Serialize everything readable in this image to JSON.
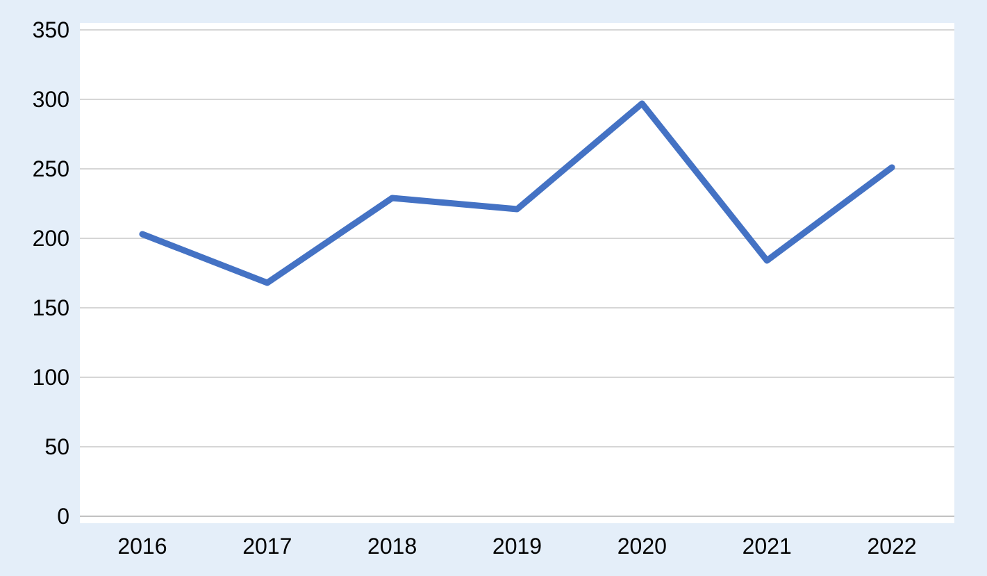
{
  "chart": {
    "background_color": "#e4eef9",
    "plot_background_color": "#ffffff",
    "gridline_color": "#d6d6d6",
    "axis_line_color": "#c2c2c2",
    "text_color": "#000000"
  },
  "chart_data": {
    "type": "line",
    "categories": [
      "2016",
      "2017",
      "2018",
      "2019",
      "2020",
      "2021",
      "2022"
    ],
    "values": [
      203,
      168,
      229,
      221,
      297,
      184,
      251
    ],
    "series": [
      {
        "name": "",
        "values": [
          203,
          168,
          229,
          221,
          297,
          184,
          251
        ],
        "color": "#4472c4",
        "line_width": 9
      }
    ],
    "title": "",
    "xlabel": "",
    "ylabel": "",
    "ylim": [
      0,
      350
    ],
    "yticks": [
      0,
      50,
      100,
      150,
      200,
      250,
      300,
      350
    ],
    "grid": true,
    "legend_position": "none",
    "markers": false
  }
}
